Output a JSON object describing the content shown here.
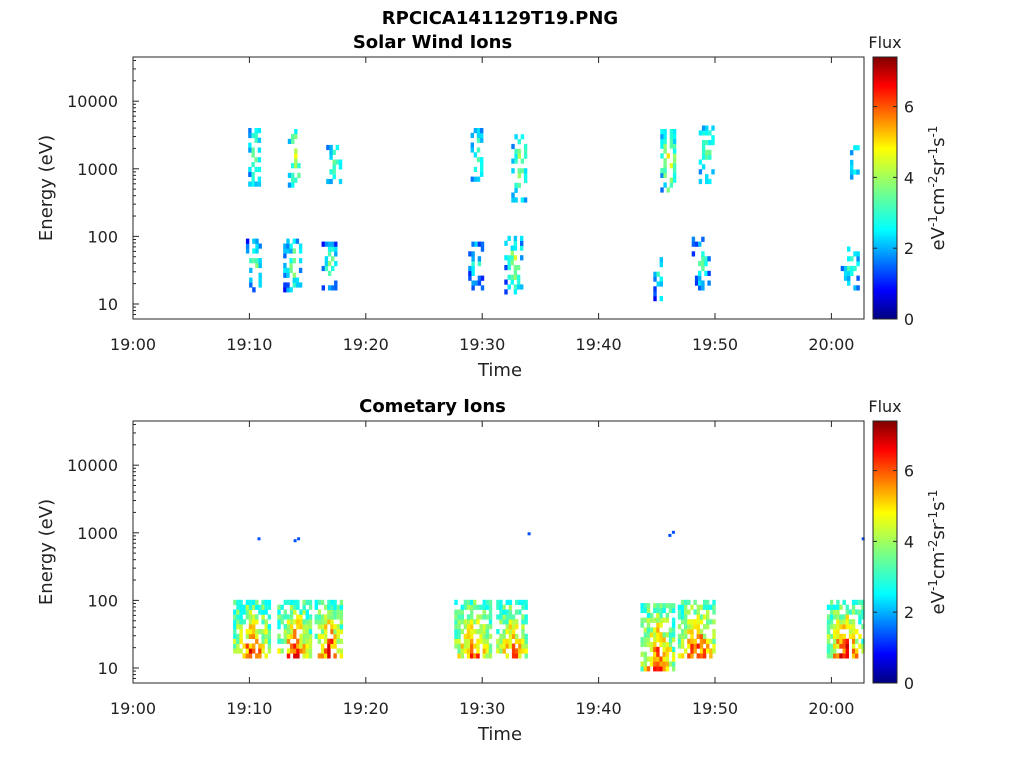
{
  "figure": {
    "file_title": "RPCICA141129T19.PNG"
  },
  "colors": {
    "colormap": "jet",
    "axis": "#262626"
  },
  "chart_data": [
    {
      "type": "heatmap",
      "title": "Solar Wind Ions",
      "xlabel": "Time",
      "ylabel": "Energy (eV)",
      "x_ticks": [
        "19:00",
        "19:10",
        "19:20",
        "19:30",
        "19:40",
        "19:50",
        "20:00"
      ],
      "x_tick_minutes": [
        0,
        10,
        20,
        30,
        40,
        50,
        60
      ],
      "xlim_minutes": [
        0,
        62.8
      ],
      "y_scale": "log",
      "y_ticks": [
        "10",
        "100",
        "1000",
        "10000"
      ],
      "y_tick_values": [
        10,
        100,
        1000,
        10000
      ],
      "ylim": [
        6,
        45000
      ],
      "colorbar": {
        "label": "Flux",
        "unit_label": "eV-1cm-2sr-1s-1",
        "ticks": [
          "0",
          "2",
          "4",
          "6"
        ],
        "tick_values": [
          0,
          2,
          4,
          6
        ],
        "range": [
          0,
          7.4
        ]
      },
      "clusters": [
        {
          "t": [
            9.9,
            10.9
          ],
          "e": [
            550,
            3600
          ],
          "f": [
            1.5,
            3.8
          ]
        },
        {
          "t": [
            13.3,
            14.3
          ],
          "e": [
            450,
            3800
          ],
          "f": [
            1.5,
            4.8
          ]
        },
        {
          "t": [
            16.6,
            17.8
          ],
          "e": [
            600,
            2200
          ],
          "f": [
            1.5,
            3.5
          ]
        },
        {
          "t": [
            29.0,
            30.0
          ],
          "e": [
            650,
            3700
          ],
          "f": [
            1.5,
            3.4
          ]
        },
        {
          "t": [
            32.5,
            33.8
          ],
          "e": [
            320,
            3800
          ],
          "f": [
            1.5,
            4.2
          ]
        },
        {
          "t": [
            45.3,
            46.6
          ],
          "e": [
            450,
            3800
          ],
          "f": [
            1.5,
            5.0
          ]
        },
        {
          "t": [
            48.6,
            49.8
          ],
          "e": [
            600,
            4200
          ],
          "f": [
            1.5,
            3.6
          ]
        },
        {
          "t": [
            61.6,
            62.4
          ],
          "e": [
            700,
            2200
          ],
          "f": [
            1.5,
            3.3
          ]
        },
        {
          "t": [
            9.7,
            11.0
          ],
          "e": [
            15,
            85
          ],
          "f": [
            0.8,
            3.8
          ]
        },
        {
          "t": [
            12.9,
            14.5
          ],
          "e": [
            15,
            85
          ],
          "f": [
            0.8,
            4.0
          ]
        },
        {
          "t": [
            16.2,
            17.5
          ],
          "e": [
            16,
            75
          ],
          "f": [
            0.8,
            3.8
          ]
        },
        {
          "t": [
            28.8,
            29.9
          ],
          "e": [
            16,
            80
          ],
          "f": [
            0.8,
            3.3
          ]
        },
        {
          "t": [
            31.9,
            33.4
          ],
          "e": [
            14,
            90
          ],
          "f": [
            0.8,
            4.5
          ]
        },
        {
          "t": [
            44.7,
            45.5
          ],
          "e": [
            8,
            55
          ],
          "f": [
            0.8,
            3.3
          ]
        },
        {
          "t": [
            48.0,
            49.5
          ],
          "e": [
            16,
            85
          ],
          "f": [
            0.8,
            3.5
          ]
        },
        {
          "t": [
            60.8,
            62.4
          ],
          "e": [
            16,
            70
          ],
          "f": [
            0.8,
            3.3
          ]
        }
      ]
    },
    {
      "type": "heatmap",
      "title": "Cometary Ions",
      "xlabel": "Time",
      "ylabel": "Energy (eV)",
      "x_ticks": [
        "19:00",
        "19:10",
        "19:20",
        "19:30",
        "19:40",
        "19:50",
        "20:00"
      ],
      "x_tick_minutes": [
        0,
        10,
        20,
        30,
        40,
        50,
        60
      ],
      "xlim_minutes": [
        0,
        62.8
      ],
      "y_scale": "log",
      "y_ticks": [
        "10",
        "100",
        "1000",
        "10000"
      ],
      "y_tick_values": [
        10,
        100,
        1000,
        10000
      ],
      "ylim": [
        6,
        45000
      ],
      "colorbar": {
        "label": "Flux",
        "unit_label": "eV-1cm-2sr-1s-1",
        "ticks": [
          "0",
          "2",
          "4",
          "6"
        ],
        "tick_values": [
          0,
          2,
          4,
          6
        ],
        "range": [
          0,
          7.4
        ]
      },
      "clusters": [
        {
          "t": [
            8.6,
            11.6
          ],
          "e": [
            14,
            90
          ],
          "f": [
            2.5,
            6.8
          ]
        },
        {
          "t": [
            12.4,
            15.2
          ],
          "e": [
            14,
            90
          ],
          "f": [
            2.5,
            6.8
          ]
        },
        {
          "t": [
            15.6,
            18.0
          ],
          "e": [
            14,
            90
          ],
          "f": [
            2.5,
            6.8
          ]
        },
        {
          "t": [
            27.6,
            30.6
          ],
          "e": [
            14,
            90
          ],
          "f": [
            2.5,
            6.5
          ]
        },
        {
          "t": [
            31.2,
            33.8
          ],
          "e": [
            14,
            90
          ],
          "f": [
            2.5,
            6.3
          ]
        },
        {
          "t": [
            43.6,
            46.4
          ],
          "e": [
            9,
            90
          ],
          "f": [
            2.5,
            6.6
          ]
        },
        {
          "t": [
            46.8,
            49.9
          ],
          "e": [
            14,
            90
          ],
          "f": [
            2.5,
            6.8
          ]
        },
        {
          "t": [
            59.6,
            62.6
          ],
          "e": [
            14,
            90
          ],
          "f": [
            2.5,
            6.9
          ]
        }
      ],
      "sparse": [
        {
          "t": 10.7,
          "e": 800
        },
        {
          "t": 13.8,
          "e": 750
        },
        {
          "t": 14.1,
          "e": 800
        },
        {
          "t": 33.9,
          "e": 950
        },
        {
          "t": 46.0,
          "e": 900
        },
        {
          "t": 46.3,
          "e": 1000
        },
        {
          "t": 62.6,
          "e": 800
        }
      ]
    }
  ]
}
